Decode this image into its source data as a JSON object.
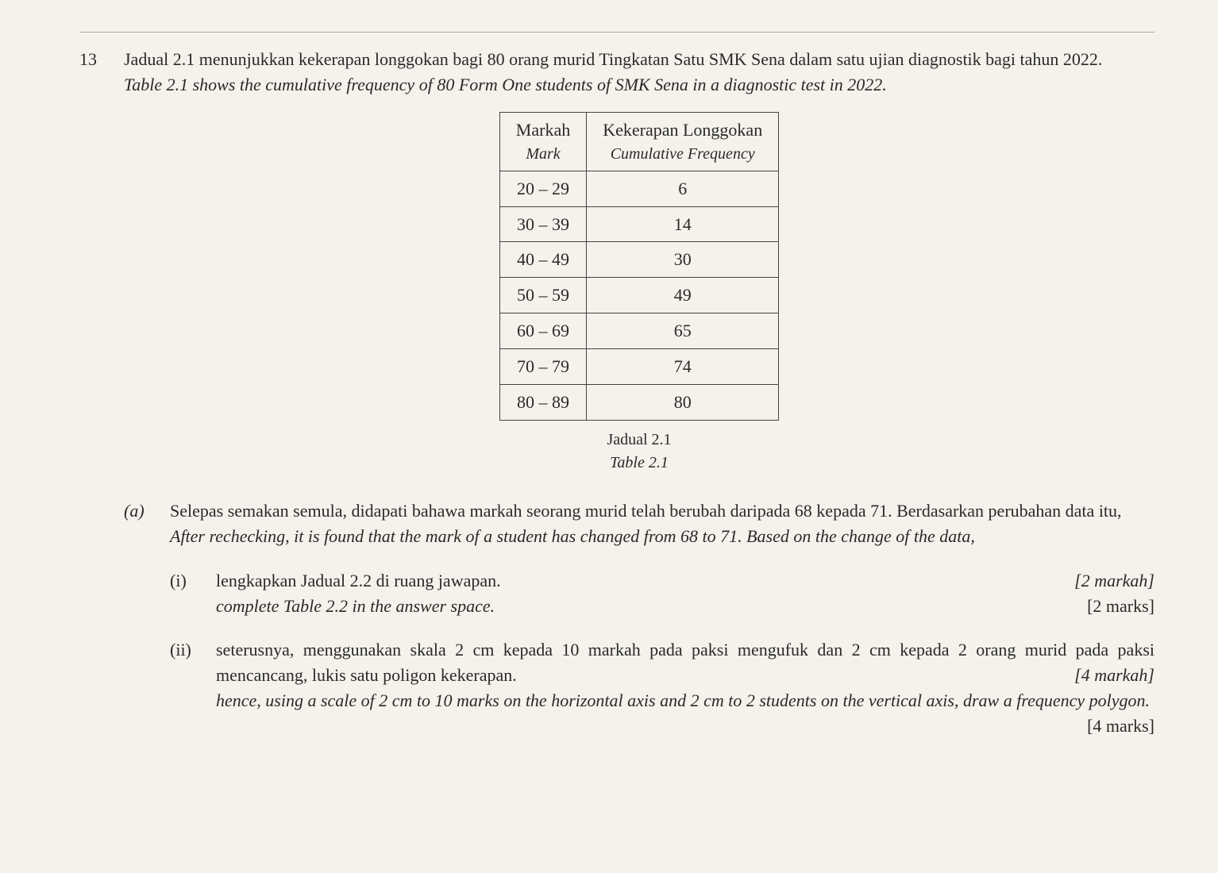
{
  "question_number": "13",
  "intro_line1": "Jadual 2.1 menunjukkan kekerapan longgokan bagi 80 orang murid Tingkatan Satu SMK Sena dalam satu ujian diagnostik bagi tahun 2022.",
  "intro_line2_italic": "Table 2.1 shows the cumulative frequency of 80 Form One students of SMK Sena in a diagnostic test in 2022.",
  "table": {
    "col1_header": "Markah",
    "col1_subheader_italic": "Mark",
    "col2_header": "Kekerapan Longgokan",
    "col2_subheader_italic": "Cumulative Frequency",
    "rows": [
      {
        "mark": "20 – 29",
        "cf": "6"
      },
      {
        "mark": "30 – 39",
        "cf": "14"
      },
      {
        "mark": "40 – 49",
        "cf": "30"
      },
      {
        "mark": "50 – 59",
        "cf": "49"
      },
      {
        "mark": "60 – 69",
        "cf": "65"
      },
      {
        "mark": "70 – 79",
        "cf": "74"
      },
      {
        "mark": "80 – 89",
        "cf": "80"
      }
    ],
    "caption_line1": "Jadual 2.1",
    "caption_line2_italic": "Table 2.1"
  },
  "part_a": {
    "label": "(a)",
    "text_line1": "Selepas semakan semula, didapati bahawa markah seorang murid telah berubah daripada 68 kepada 71. Berdasarkan perubahan data itu,",
    "text_line2_italic": "After rechecking, it is found that the mark of a student has changed from 68 to 71. Based on the change of the data,",
    "sub_i": {
      "label": "(i)",
      "text_bm": "lengkapkan Jadual 2.2 di ruang jawapan.",
      "text_en_italic": "complete Table 2.2 in the answer space.",
      "marks_bm": "[2 markah]",
      "marks_en": "[2 marks]"
    },
    "sub_ii": {
      "label": "(ii)",
      "text_bm": "seterusnya, menggunakan skala 2 cm kepada 10 markah pada paksi mengufuk dan 2 cm kepada 2 orang murid pada paksi mencancang, lukis satu poligon kekerapan.",
      "marks_bm": "[4 markah]",
      "text_en_italic": "hence, using a scale of 2 cm to 10 marks on the horizontal axis and 2 cm to 2 students on the vertical axis, draw a frequency polygon.",
      "marks_en": "[4 marks]"
    }
  }
}
